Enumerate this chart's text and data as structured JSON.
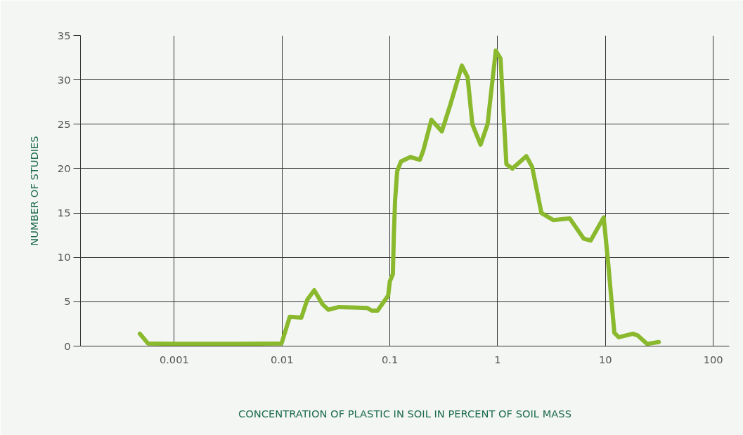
{
  "chart_data": {
    "type": "line",
    "xlabel": "CONCENTRATION OF PLASTIC IN SOIL IN PERCENT OF SOIL MASS",
    "ylabel": "NUMBER OF STUDIES",
    "log": "x",
    "xlim": [
      0.000135,
      141
    ],
    "xticks": [
      0.001,
      0.01,
      0.1,
      1,
      10,
      100
    ],
    "ylim": [
      0,
      35
    ],
    "yticks": [
      0,
      5,
      10,
      15,
      20,
      25,
      30,
      35
    ],
    "grid": true,
    "marker": "none",
    "line_style": "solid",
    "series": [
      {
        "color": "#8ab92d",
        "x": [
          0.00048,
          0.00057,
          0.001,
          0.0036,
          0.0099,
          0.0118,
          0.0151,
          0.0171,
          0.0199,
          0.0238,
          0.0269,
          0.0337,
          0.0615,
          0.068,
          0.077,
          0.0966,
          0.1,
          0.1067,
          0.109,
          0.112,
          0.117,
          0.127,
          0.155,
          0.19,
          0.204,
          0.243,
          0.304,
          0.362,
          0.466,
          0.527,
          0.583,
          0.695,
          0.807,
          0.962,
          1.064,
          1.206,
          1.367,
          1.846,
          2.09,
          2.55,
          3.28,
          4.66,
          6.3,
          7.3,
          9.64,
          10.6,
          12.1,
          13.3,
          18.0,
          19.9,
          24.3,
          31.3
        ],
        "values": [
          1.4,
          0.3,
          0.25,
          0.25,
          0.3,
          3.3,
          3.2,
          5.2,
          6.3,
          4.7,
          4.1,
          4.4,
          4.3,
          4.0,
          4.0,
          5.7,
          7.3,
          8.1,
          12.6,
          16.5,
          19.7,
          20.8,
          21.3,
          21.0,
          22.0,
          25.5,
          24.2,
          27.1,
          31.6,
          30.3,
          25.0,
          22.7,
          25.0,
          33.3,
          32.4,
          20.5,
          20.0,
          21.4,
          20.2,
          15.0,
          14.2,
          14.4,
          12.1,
          11.9,
          14.5,
          9.4,
          1.5,
          1.0,
          1.4,
          1.2,
          0.25,
          0.45
        ]
      }
    ]
  }
}
